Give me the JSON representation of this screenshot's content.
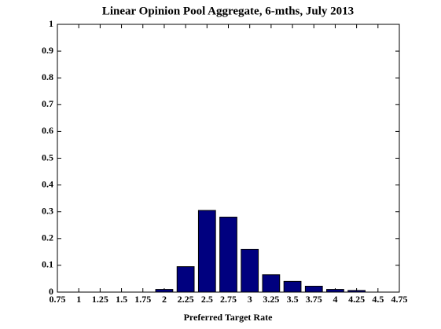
{
  "chart_data": {
    "type": "bar",
    "title": "Linear Opinion Pool Aggregate, 6-mths, July 2013",
    "xlabel": "Preferred Target Rate",
    "x": [
      2,
      2.25,
      2.5,
      2.75,
      3,
      3.25,
      3.5,
      3.75,
      4,
      4.25
    ],
    "values": [
      0.01,
      0.095,
      0.305,
      0.28,
      0.16,
      0.065,
      0.04,
      0.022,
      0.01,
      0.006
    ],
    "color": "#00007f",
    "xlim": [
      0.75,
      4.75
    ],
    "xticks": [
      0.75,
      1,
      1.25,
      1.5,
      1.75,
      2,
      2.25,
      2.5,
      2.75,
      3,
      3.25,
      3.5,
      3.75,
      4,
      4.25,
      4.5,
      4.75
    ],
    "ylim": [
      0,
      1
    ],
    "yticks": [
      0,
      0.1,
      0.2,
      0.3,
      0.4,
      0.5,
      0.6,
      0.7,
      0.8,
      0.9,
      1
    ],
    "grid": false
  }
}
